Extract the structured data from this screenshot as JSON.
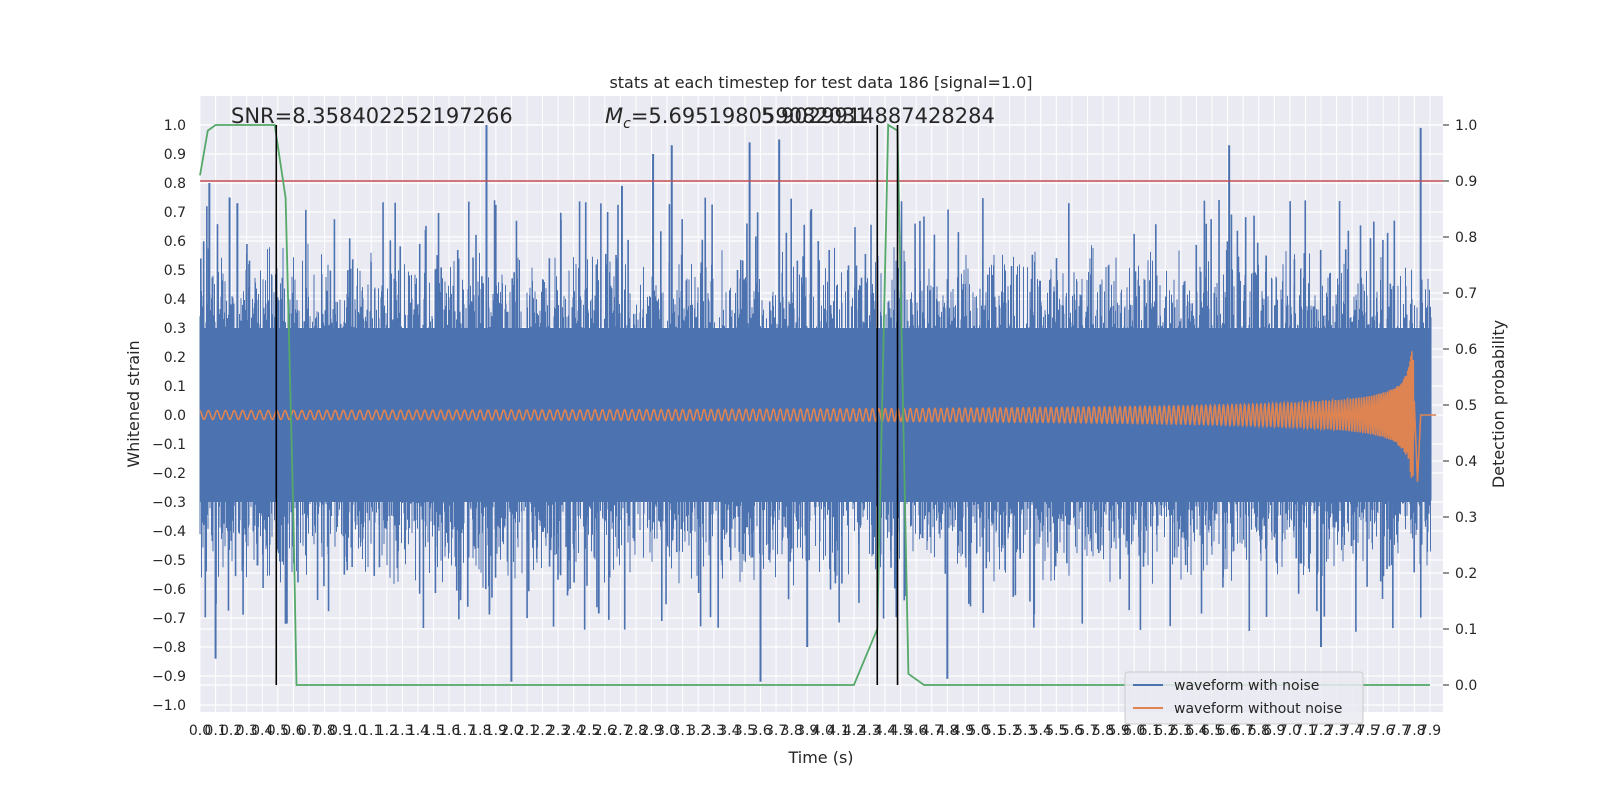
{
  "chart_data": {
    "type": "line",
    "title": "stats at each timestep for test data 186 [signal=1.0]",
    "xlabel": "Time (s)",
    "ylabel_left": "Whitened strain",
    "ylabel_right": "Detection probability",
    "xlim": [
      0.0,
      7.95
    ],
    "ylim_left": [
      -1.05,
      1.05
    ],
    "ylim_right": [
      -0.05,
      1.05
    ],
    "x_ticks": [
      0.0,
      0.1,
      0.2,
      0.3,
      0.4,
      0.5,
      0.6,
      0.7,
      0.8,
      0.9,
      1.0,
      1.1,
      1.2,
      1.3,
      1.4,
      1.5,
      1.6,
      1.7,
      1.8,
      1.9,
      2.0,
      2.1,
      2.2,
      2.3,
      2.4,
      2.5,
      2.6,
      2.7,
      2.8,
      2.9,
      3.0,
      3.1,
      3.2,
      3.3,
      3.4,
      3.5,
      3.6,
      3.7,
      3.8,
      3.9,
      4.0,
      4.1,
      4.2,
      4.3,
      4.4,
      4.5,
      4.6,
      4.7,
      4.8,
      4.9,
      5.0,
      5.1,
      5.2,
      5.3,
      5.4,
      5.5,
      5.6,
      5.7,
      5.8,
      5.9,
      6.0,
      6.1,
      6.2,
      6.3,
      6.4,
      6.5,
      6.6,
      6.7,
      6.8,
      6.9,
      7.0,
      7.1,
      7.2,
      7.3,
      7.4,
      7.5,
      7.6,
      7.7,
      7.8,
      7.9
    ],
    "y_ticks_left": [
      "1.0",
      "0.9",
      "0.8",
      "0.7",
      "0.6",
      "0.5",
      "0.4",
      "0.3",
      "0.2",
      "0.1",
      "0.0",
      "−0.1",
      "−0.2",
      "−0.3",
      "−0.4",
      "−0.5",
      "−0.6",
      "−0.7",
      "−0.8",
      "−0.9",
      "−1.0"
    ],
    "y_ticks_right": [
      "1.0",
      "0.9",
      "0.8",
      "0.7",
      "0.6",
      "0.5",
      "0.4",
      "0.3",
      "0.2",
      "0.1",
      "0.0"
    ],
    "annotations": {
      "snr": "SNR=8.358402252197266",
      "mc": "=5.695198059082031",
      "mc_symbol": "M",
      "mc_subscript": "c",
      "overlap": "5.9029914887428284"
    },
    "legend": [
      {
        "name": "waveform with noise",
        "color": "#4c72b0"
      },
      {
        "name": "waveform without noise",
        "color": "#dd8452"
      }
    ],
    "threshold": {
      "value": 0.9,
      "axis": "right",
      "color": "#c44e52"
    },
    "vertical_markers_s": [
      0.49,
      4.35,
      4.48
    ],
    "detection_probability": {
      "color": "#55a868",
      "x": [
        0.0,
        0.05,
        0.1,
        0.2,
        0.3,
        0.4,
        0.48,
        0.55,
        0.6,
        0.62,
        0.65,
        4.2,
        4.35,
        4.42,
        4.48,
        4.55,
        4.65,
        7.9
      ],
      "y": [
        0.91,
        0.99,
        1.0,
        1.0,
        1.0,
        1.0,
        1.0,
        0.87,
        0.3,
        0.0,
        0.0,
        0.0,
        0.1,
        1.0,
        0.99,
        0.02,
        0.0,
        0.0
      ]
    },
    "waveform_with_noise": {
      "color": "#4c72b0",
      "typical_envelope": 0.4,
      "peaks": [
        {
          "t": 0.06,
          "v": 0.8
        },
        {
          "t": 0.19,
          "v": 0.75
        },
        {
          "t": 0.24,
          "v": 0.73
        },
        {
          "t": 1.84,
          "v": 1.0
        },
        {
          "t": 2.71,
          "v": 0.79
        },
        {
          "t": 2.91,
          "v": 0.9
        },
        {
          "t": 3.03,
          "v": 0.93
        },
        {
          "t": 3.53,
          "v": 0.94
        },
        {
          "t": 3.72,
          "v": 0.95
        },
        {
          "t": 6.61,
          "v": 0.93
        },
        {
          "t": 7.84,
          "v": 0.99
        },
        {
          "t": 0.1,
          "v": -0.84
        },
        {
          "t": 2.0,
          "v": -0.92
        },
        {
          "t": 3.6,
          "v": -0.92
        },
        {
          "t": 3.9,
          "v": -0.8
        },
        {
          "t": 4.8,
          "v": -0.91
        },
        {
          "t": 0.55,
          "v": -0.72
        },
        {
          "t": 7.2,
          "v": -0.8
        }
      ]
    },
    "waveform_without_noise": {
      "color": "#dd8452",
      "start_amplitude": 0.015,
      "end_amplitude": 0.22,
      "merger_time": 7.8
    }
  }
}
